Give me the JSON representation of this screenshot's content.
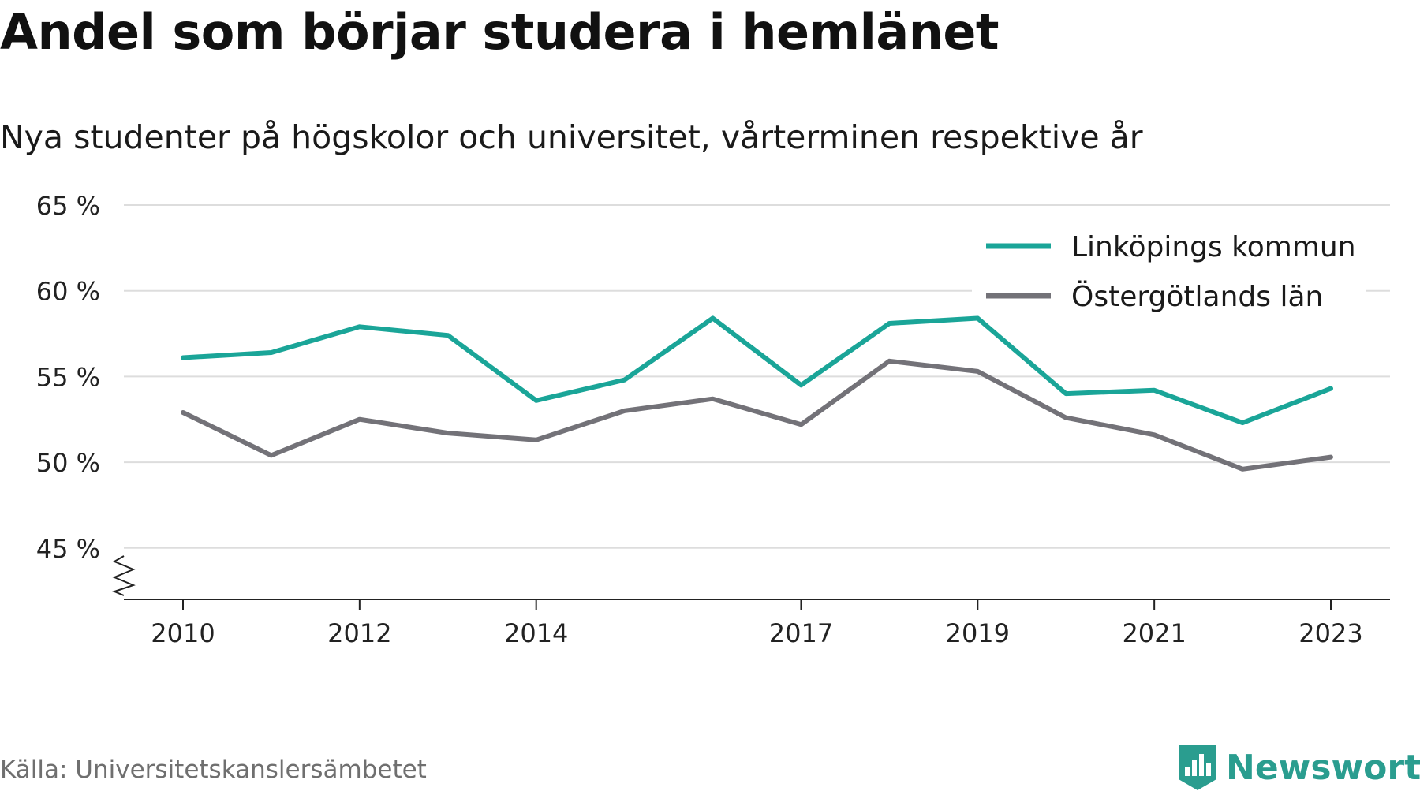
{
  "title": "Andel som börjar studera i hemlänet",
  "subtitle": "Nya studenter på högskolor och universitet, vårterminen respektive år",
  "source": "Källa: Universitetskanslersämbetet",
  "brand": {
    "name": "Newsworthy",
    "color": "#2a9d8f"
  },
  "chart_data": {
    "type": "line",
    "x": [
      2010,
      2011,
      2012,
      2013,
      2014,
      2015,
      2016,
      2017,
      2018,
      2019,
      2020,
      2021,
      2022,
      2023
    ],
    "xticks": [
      2010,
      2012,
      2014,
      2017,
      2019,
      2021,
      2023
    ],
    "yticks": [
      45,
      50,
      55,
      60,
      65
    ],
    "ytick_labels": [
      "45 %",
      "50 %",
      "55 %",
      "60 %",
      "65 %"
    ],
    "ylim": [
      42,
      65
    ],
    "xlim": [
      2009.33,
      2023.67
    ],
    "axis_break": true,
    "grid": true,
    "legend_position": "top-right",
    "series": [
      {
        "name": "Linköpings kommun",
        "color": "#1aa598",
        "values": [
          56.1,
          56.4,
          57.9,
          57.4,
          53.6,
          54.8,
          58.4,
          54.5,
          58.1,
          58.4,
          54.0,
          54.2,
          52.3,
          54.3
        ]
      },
      {
        "name": "Östergötlands län",
        "color": "#737278",
        "values": [
          52.9,
          50.4,
          52.5,
          51.7,
          51.3,
          53.0,
          53.7,
          52.2,
          55.9,
          55.3,
          52.6,
          51.6,
          49.6,
          50.3
        ]
      }
    ]
  }
}
